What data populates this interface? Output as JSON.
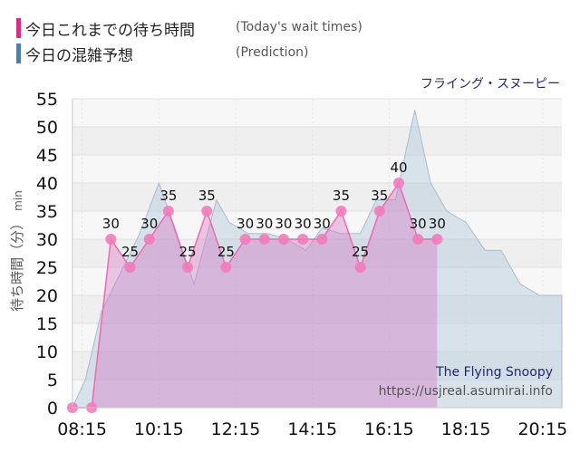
{
  "legend": {
    "today_label": "今日これまでの待ち時間",
    "today_sub": "(Today's wait times)",
    "today_color": "#e8238a",
    "prediction_label": "今日の混雑予想",
    "prediction_sub": "(Prediction)",
    "prediction_color": "#4a7fb0"
  },
  "chart_data": {
    "type": "area",
    "attraction": "フライング・スヌーピー",
    "ylabel": "待ち時間（分）",
    "yunit": "min",
    "ylim": [
      0,
      55
    ],
    "yticks": [
      0,
      5,
      10,
      15,
      20,
      25,
      30,
      35,
      40,
      45,
      50,
      55
    ],
    "xlim": [
      "08:00",
      "20:45"
    ],
    "xticks": [
      "08:15",
      "10:15",
      "12:15",
      "14:15",
      "16:15",
      "18:15",
      "20:15"
    ],
    "grid": true,
    "series": [
      {
        "name": "今日これまでの待ち時間",
        "type": "line-area",
        "x": [
          "08:00",
          "08:30",
          "09:00",
          "09:30",
          "10:00",
          "10:30",
          "11:00",
          "11:30",
          "12:00",
          "12:30",
          "13:00",
          "13:30",
          "14:00",
          "14:30",
          "15:00",
          "15:30",
          "16:00",
          "16:30",
          "17:00",
          "17:30"
        ],
        "values": [
          0,
          0,
          30,
          25,
          30,
          35,
          25,
          35,
          25,
          30,
          30,
          30,
          30,
          30,
          35,
          25,
          35,
          40,
          30,
          30
        ]
      },
      {
        "name": "今日の混雑予想",
        "type": "area",
        "x": [
          "08:00",
          "08:20",
          "08:45",
          "09:15",
          "09:45",
          "10:15",
          "10:40",
          "11:10",
          "11:45",
          "12:05",
          "12:35",
          "13:05",
          "13:35",
          "14:05",
          "14:30",
          "15:00",
          "15:30",
          "15:55",
          "16:25",
          "16:55",
          "17:20",
          "17:45",
          "18:15",
          "18:45",
          "19:10",
          "19:40",
          "20:10",
          "20:45"
        ],
        "values": [
          0,
          5,
          17,
          24,
          31,
          40,
          32,
          22,
          37,
          33,
          31,
          31,
          30,
          28,
          32,
          31,
          31,
          37,
          37,
          53,
          40,
          35,
          33,
          28,
          28,
          22,
          20,
          20
        ]
      }
    ]
  },
  "credits": {
    "title": "The Flying Snoopy",
    "url": "https://usjreal.asumirai.info"
  }
}
